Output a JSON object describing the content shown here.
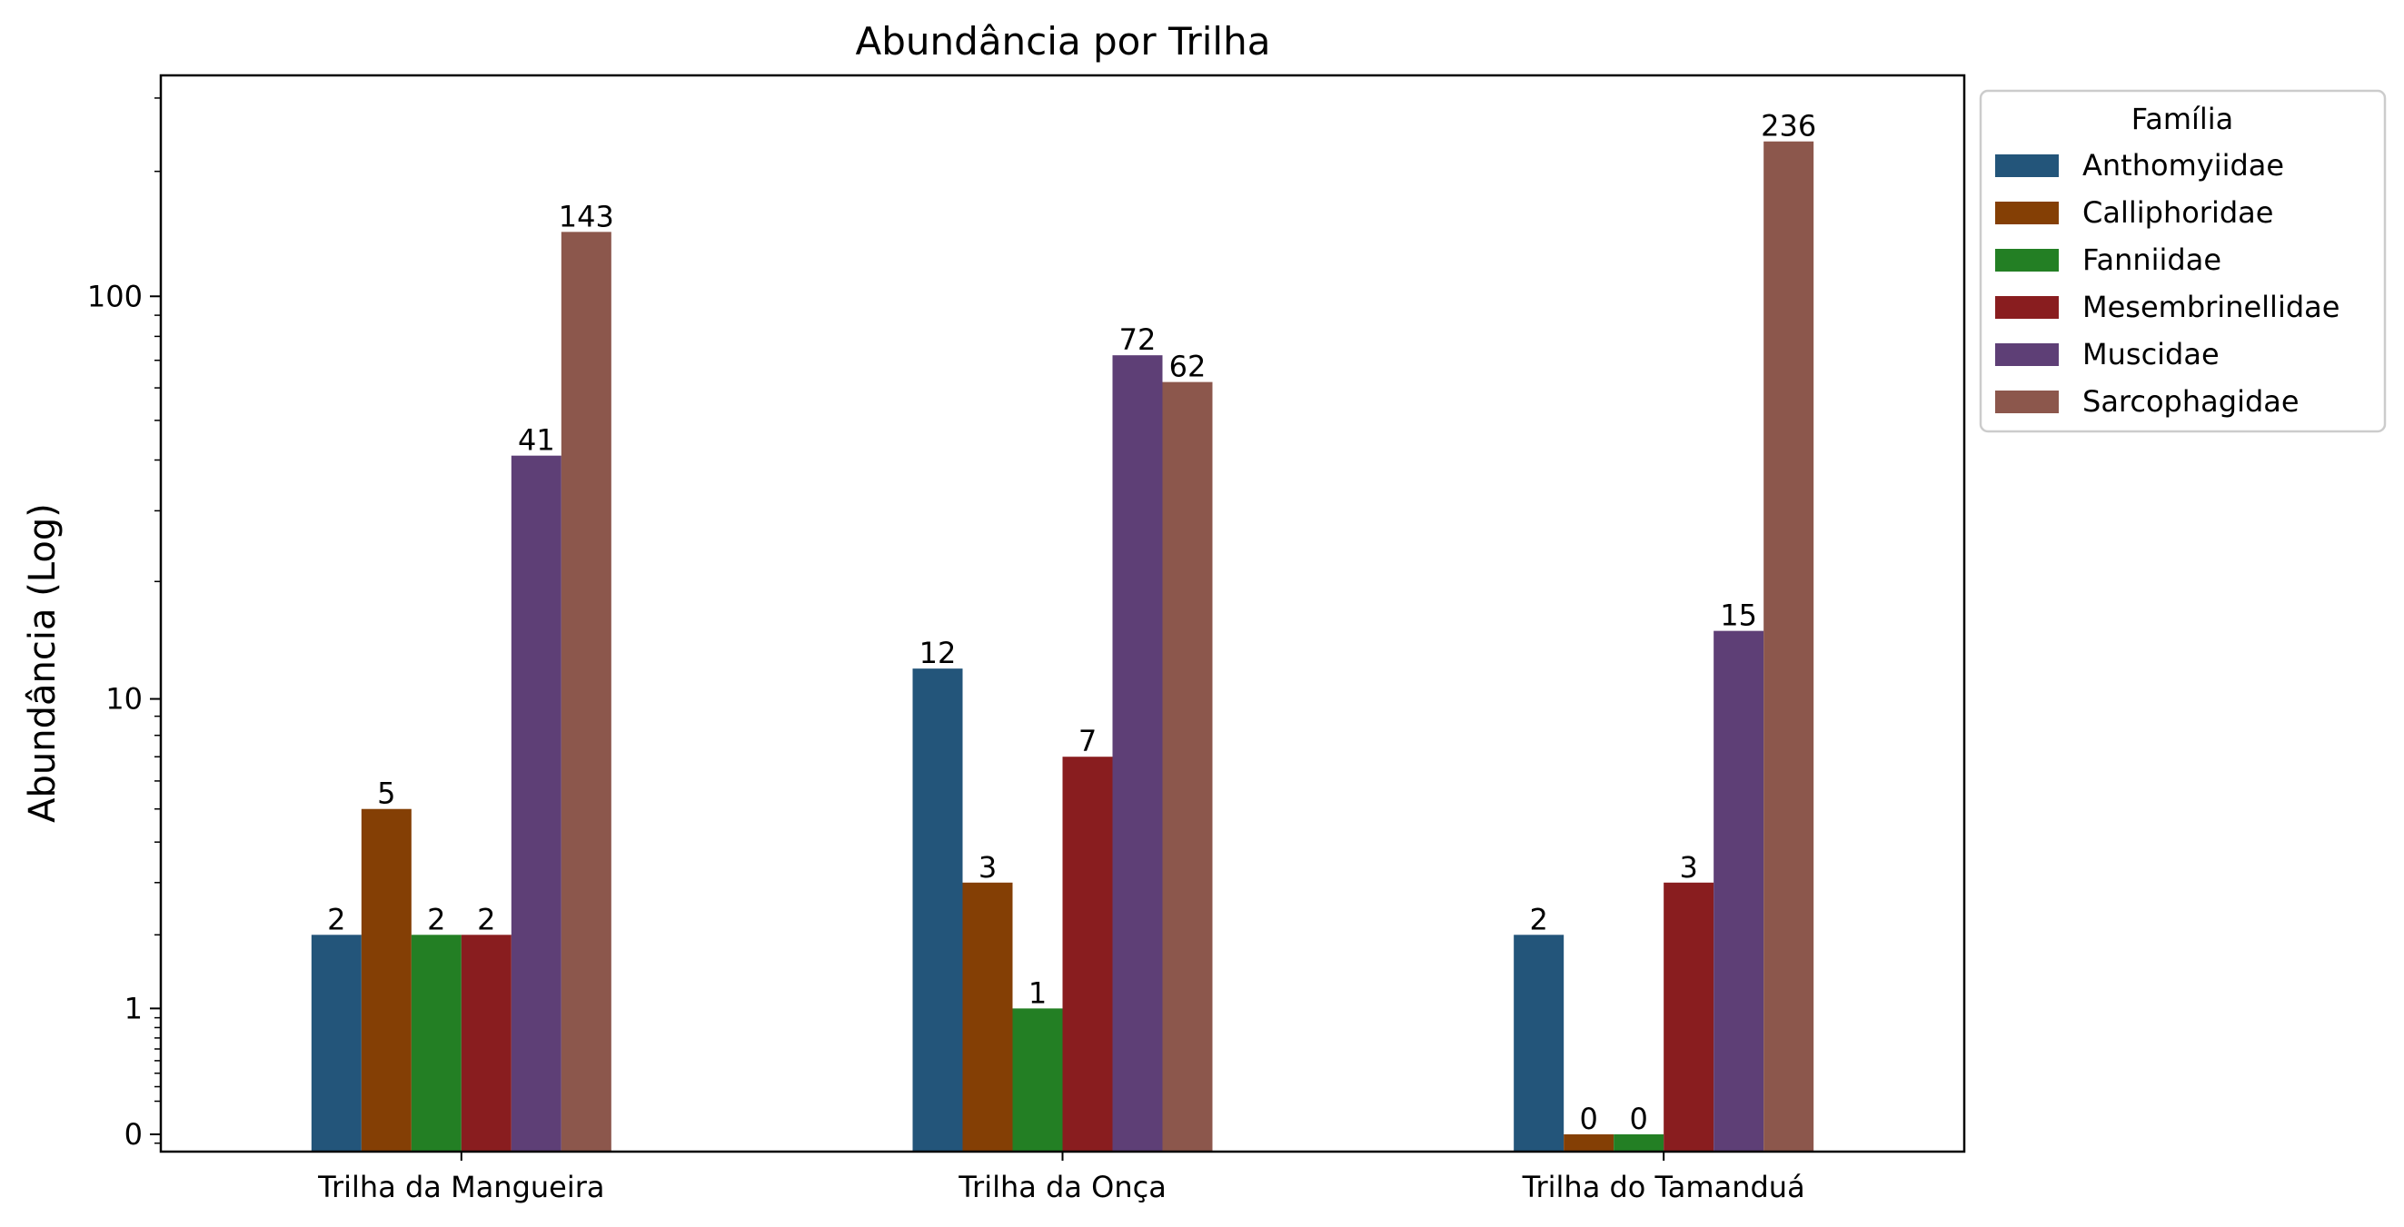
{
  "chart_data": {
    "type": "bar",
    "title": "Abundância por Trilha",
    "xlabel": "",
    "ylabel": "Abundância (Log)",
    "yscale": "symlog",
    "ylim": [
      -0.1,
      340
    ],
    "yticks": [
      {
        "value": 0,
        "label": "0"
      },
      {
        "value": 1,
        "label": "1"
      },
      {
        "value": 10,
        "label": "10"
      },
      {
        "value": 100,
        "label": "100"
      }
    ],
    "categories": [
      "Trilha da Mangueira",
      "Trilha da Onça",
      "Trilha do Tamanduá"
    ],
    "legend": {
      "title": "Família",
      "placement": "outside-right-top"
    },
    "grid": false,
    "series": [
      {
        "name": "Anthomyiidae",
        "color": "#23557a",
        "values": [
          2,
          12,
          2
        ]
      },
      {
        "name": "Calliphoridae",
        "color": "#843f05",
        "values": [
          5,
          3,
          0
        ]
      },
      {
        "name": "Fanniidae",
        "color": "#237f24",
        "values": [
          2,
          1,
          0
        ]
      },
      {
        "name": "Mesembrinellidae",
        "color": "#891d1f",
        "values": [
          2,
          7,
          3
        ]
      },
      {
        "name": "Muscidae",
        "color": "#5e3f76",
        "values": [
          41,
          72,
          15
        ]
      },
      {
        "name": "Sarcophagidae",
        "color": "#8c574c",
        "values": [
          143,
          62,
          236
        ]
      }
    ]
  }
}
